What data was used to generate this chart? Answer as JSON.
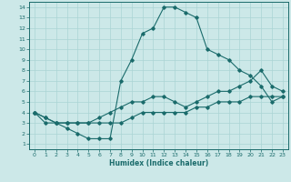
{
  "xlabel": "Humidex (Indice chaleur)",
  "bg_color": "#cce8e8",
  "line_color": "#1a6b6b",
  "grid_color": "#aad4d4",
  "xlim": [
    -0.5,
    23.5
  ],
  "ylim": [
    0.5,
    14.5
  ],
  "xticks": [
    0,
    1,
    2,
    3,
    4,
    5,
    6,
    7,
    8,
    9,
    10,
    11,
    12,
    13,
    14,
    15,
    16,
    17,
    18,
    19,
    20,
    21,
    22,
    23
  ],
  "yticks": [
    1,
    2,
    3,
    4,
    5,
    6,
    7,
    8,
    9,
    10,
    11,
    12,
    13,
    14
  ],
  "line1_x": [
    0,
    1,
    2,
    3,
    4,
    5,
    6,
    7,
    8,
    9,
    10,
    11,
    12,
    13,
    14,
    15,
    16,
    17,
    18,
    19,
    20,
    21,
    22,
    23
  ],
  "line1_y": [
    4,
    3,
    3,
    2.5,
    2,
    1.5,
    1.5,
    1.5,
    7,
    9,
    11.5,
    12,
    14,
    14,
    13.5,
    13,
    10,
    9.5,
    9,
    8,
    7.5,
    6.5,
    5,
    5.5
  ],
  "line2_x": [
    0,
    1,
    2,
    3,
    4,
    5,
    6,
    7,
    8,
    9,
    10,
    11,
    12,
    13,
    14,
    15,
    16,
    17,
    18,
    19,
    20,
    21,
    22,
    23
  ],
  "line2_y": [
    4,
    3.5,
    3,
    3,
    3,
    3,
    3.5,
    4,
    4.5,
    5,
    5,
    5.5,
    5.5,
    5,
    4.5,
    5,
    5.5,
    6,
    6,
    6.5,
    7,
    8,
    6.5,
    6
  ],
  "line3_x": [
    0,
    1,
    2,
    3,
    4,
    5,
    6,
    7,
    8,
    9,
    10,
    11,
    12,
    13,
    14,
    15,
    16,
    17,
    18,
    19,
    20,
    21,
    22,
    23
  ],
  "line3_y": [
    4,
    3.5,
    3,
    3,
    3,
    3,
    3,
    3,
    3,
    3.5,
    4,
    4,
    4,
    4,
    4,
    4.5,
    4.5,
    5,
    5,
    5,
    5.5,
    5.5,
    5.5,
    5.5
  ]
}
